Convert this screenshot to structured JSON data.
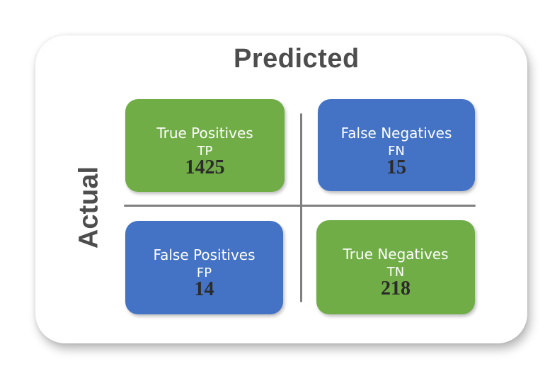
{
  "header": {
    "title": "Predicted"
  },
  "side": {
    "title": "Actual"
  },
  "matrix": {
    "tp": {
      "label": "True Positives",
      "abbr": "TP",
      "value": "1425",
      "color": "#70ad47"
    },
    "fn": {
      "label": "False Negatives",
      "abbr": "FN",
      "value": "15",
      "color": "#4472c4"
    },
    "fp": {
      "label": "False Positives",
      "abbr": "FP",
      "value": "14",
      "color": "#4472c4"
    },
    "tn": {
      "label": "True Negatives",
      "abbr": "TN",
      "value": "218",
      "color": "#70ad47"
    }
  },
  "colors": {
    "title": "#4d4d4d",
    "divider": "#7f7f7f",
    "count_text": "#2b2b2b"
  }
}
